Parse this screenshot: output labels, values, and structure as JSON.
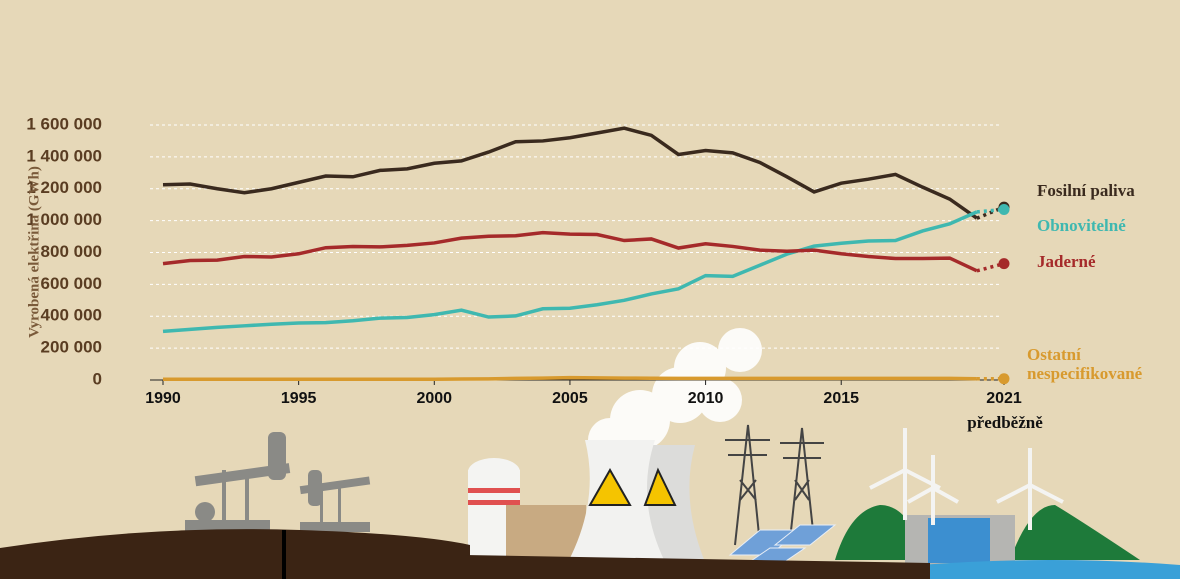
{
  "chart_data": {
    "type": "line",
    "y_label": "Vyrobená elektřina (GWh)",
    "x": [
      1990,
      1991,
      1992,
      1993,
      1994,
      1995,
      1996,
      1997,
      1998,
      1999,
      2000,
      2001,
      2002,
      2003,
      2004,
      2005,
      2006,
      2007,
      2008,
      2009,
      2010,
      2011,
      2012,
      2013,
      2014,
      2015,
      2016,
      2017,
      2018,
      2019,
      2020,
      2021
    ],
    "series": [
      {
        "name": "Fosilní paliva",
        "color": "#3a2a1e",
        "values": [
          1225000,
          1230000,
          1200000,
          1175000,
          1200000,
          1240000,
          1280000,
          1275000,
          1315000,
          1325000,
          1360000,
          1375000,
          1430000,
          1495000,
          1500000,
          1520000,
          1550000,
          1580000,
          1535000,
          1415000,
          1440000,
          1425000,
          1365000,
          1275000,
          1180000,
          1235000,
          1260000,
          1290000,
          1210000,
          1135000,
          1015000,
          1085000
        ]
      },
      {
        "name": "Obnovitelné",
        "color": "#3fb8b0",
        "values": [
          305000,
          318000,
          330000,
          340000,
          350000,
          358000,
          360000,
          372000,
          388000,
          392000,
          410000,
          438000,
          395000,
          402000,
          447000,
          450000,
          472000,
          500000,
          540000,
          572000,
          655000,
          650000,
          720000,
          790000,
          840000,
          858000,
          872000,
          875000,
          935000,
          980000,
          1055000,
          1070000
        ]
      },
      {
        "name": "Jaderné",
        "color": "#a52a2a",
        "values": [
          730000,
          750000,
          752000,
          775000,
          772000,
          792000,
          830000,
          838000,
          835000,
          845000,
          860000,
          890000,
          902000,
          905000,
          925000,
          915000,
          913000,
          875000,
          885000,
          828000,
          855000,
          838000,
          815000,
          808000,
          815000,
          792000,
          775000,
          762000,
          762000,
          765000,
          685000,
          730000
        ]
      },
      {
        "name": "Ostatní nespecifikované",
        "color": "#d89a2e",
        "values": [
          5000,
          5000,
          5000,
          5000,
          5000,
          5000,
          5000,
          5000,
          5000,
          5000,
          5000,
          6000,
          7000,
          10000,
          12000,
          15000,
          13000,
          12000,
          11000,
          10000,
          10000,
          10000,
          10000,
          10000,
          10000,
          10000,
          10000,
          10000,
          10000,
          10000,
          8000,
          8000
        ]
      }
    ],
    "annotation": "předběžně",
    "xlim": [
      1990,
      2021
    ],
    "xticks": [
      1990,
      1995,
      2000,
      2005,
      2010,
      2015,
      2021
    ],
    "ylim": [
      0,
      1600000
    ],
    "yticks": [
      0,
      {
        "value": 200000,
        "label": "200 000"
      },
      {
        "value": 400000,
        "label": "400 000"
      },
      {
        "value": 600000,
        "label": "600 000"
      },
      {
        "value": 800000,
        "label": "800 000"
      },
      {
        "value": 1000000,
        "label": "1 000 000"
      },
      {
        "value": 1200000,
        "label": "1 200 000"
      },
      {
        "value": 1400000,
        "label": "1 400 000"
      },
      {
        "value": 1600000,
        "label": "1 600 000"
      }
    ],
    "grid": true
  }
}
